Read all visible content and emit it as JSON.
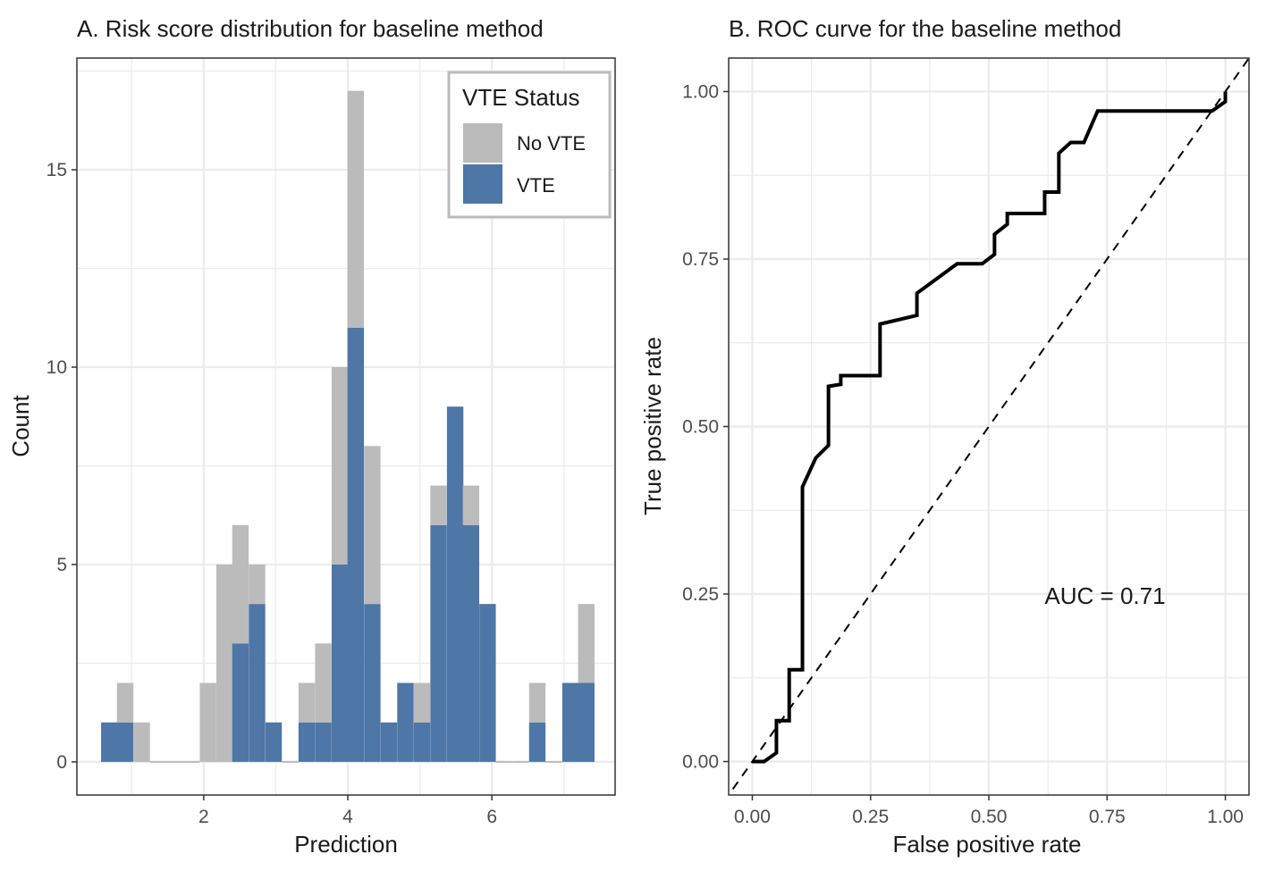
{
  "chart_data": [
    {
      "type": "bar",
      "stacked": true,
      "title": "A. Risk score distribution for baseline method",
      "xlabel": "Prediction",
      "ylabel": "Count",
      "xlim": [
        0.24,
        7.71
      ],
      "ylim": [
        -0.84,
        17.83
      ],
      "xticks": [
        2,
        4,
        6
      ],
      "yticks": [
        0,
        5,
        10,
        15
      ],
      "grid": true,
      "bin_width": 0.228,
      "x": [
        0.69,
        0.91,
        1.14,
        1.37,
        1.6,
        1.83,
        2.06,
        2.29,
        2.51,
        2.74,
        2.97,
        3.2,
        3.43,
        3.66,
        3.89,
        4.11,
        4.34,
        4.57,
        4.8,
        5.03,
        5.26,
        5.49,
        5.71,
        5.94,
        6.17,
        6.4,
        6.63,
        6.86,
        7.09,
        7.31
      ],
      "series": [
        {
          "name": "VTE",
          "color": "#4e76a6",
          "values": [
            1,
            1,
            0,
            0,
            0,
            0,
            0,
            0,
            3,
            4,
            1,
            0,
            1,
            1,
            5,
            11,
            4,
            1,
            2,
            1,
            6,
            9,
            6,
            4,
            0,
            0,
            1,
            0,
            2,
            2
          ]
        },
        {
          "name": "No VTE",
          "color": "#bbbbbb",
          "values": [
            0,
            1,
            1,
            0,
            0,
            0,
            2,
            5,
            3,
            1,
            0,
            0,
            1,
            2,
            5,
            6,
            4,
            0,
            0,
            1,
            1,
            0,
            1,
            0,
            0,
            0,
            1,
            0,
            0,
            2
          ]
        }
      ],
      "legend": {
        "title": "VTE Status",
        "placement": "top-right",
        "entries": [
          "No VTE",
          "VTE"
        ]
      }
    },
    {
      "type": "line",
      "title": "B. ROC curve for the baseline method",
      "xlabel": "False positive rate",
      "ylabel": "True positive rate",
      "xlim": [
        -0.05,
        1.05
      ],
      "ylim": [
        -0.05,
        1.05
      ],
      "xticks": [
        "0.00",
        "0.25",
        "0.50",
        "0.75",
        "1.00"
      ],
      "yticks": [
        "0.00",
        "0.25",
        "0.50",
        "0.75",
        "1.00"
      ],
      "grid": true,
      "annotation": "AUC = 0.71",
      "reference_line": {
        "slope": 1,
        "intercept": 0,
        "style": "dashed"
      },
      "series": [
        {
          "color": "#000000",
          "x": [
            0,
            0.025,
            0.051,
            0.051,
            0.078,
            0.078,
            0.106,
            0.106,
            0.134,
            0.161,
            0.161,
            0.187,
            0.187,
            0.27,
            0.27,
            0.348,
            0.348,
            0.433,
            0.486,
            0.512,
            0.512,
            0.539,
            0.539,
            0.618,
            0.618,
            0.648,
            0.648,
            0.673,
            0.701,
            0.73,
            0.972,
            1,
            1
          ],
          "y": [
            0,
            0,
            0.013,
            0.061,
            0.061,
            0.137,
            0.137,
            0.41,
            0.453,
            0.472,
            0.56,
            0.563,
            0.576,
            0.576,
            0.653,
            0.666,
            0.699,
            0.743,
            0.743,
            0.757,
            0.787,
            0.802,
            0.818,
            0.818,
            0.85,
            0.85,
            0.908,
            0.924,
            0.924,
            0.971,
            0.971,
            0.985,
            1
          ]
        }
      ]
    }
  ]
}
